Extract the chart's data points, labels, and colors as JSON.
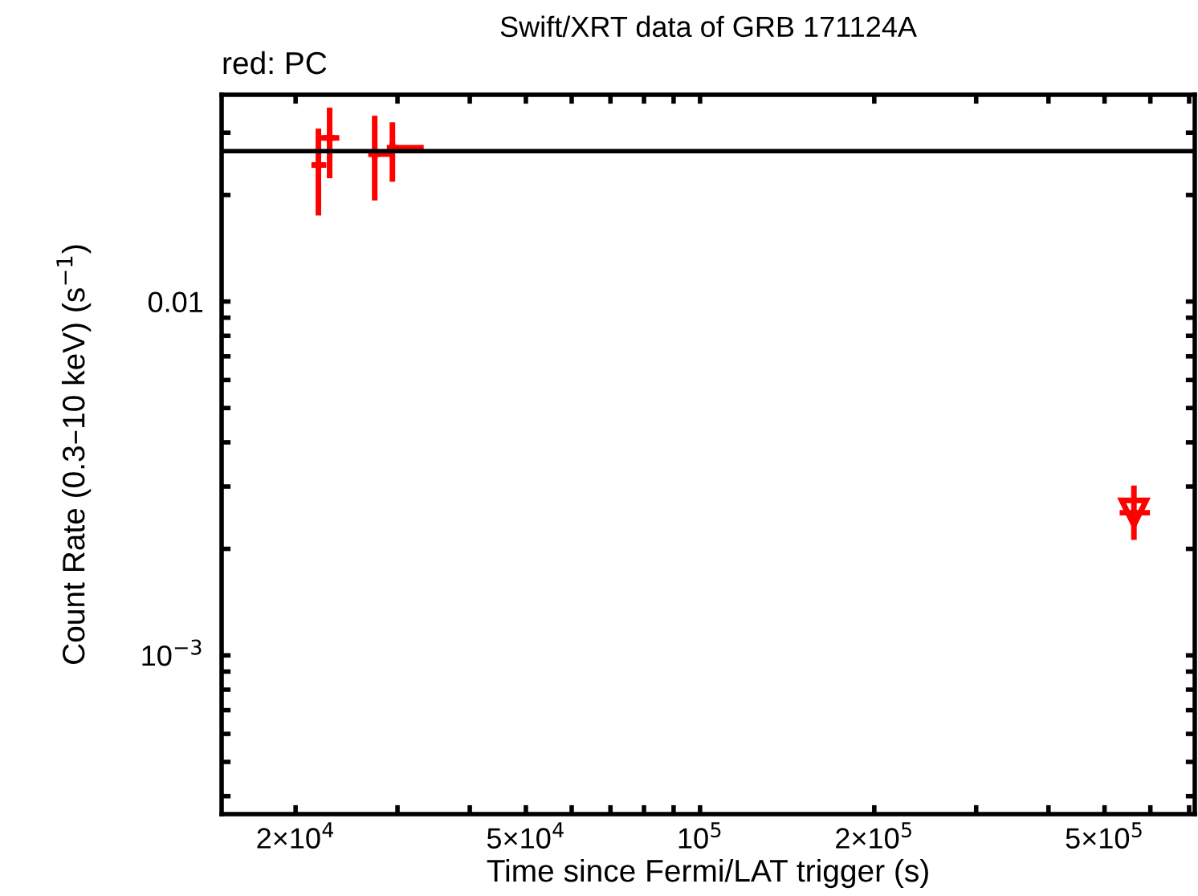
{
  "chart_data": {
    "type": "scatter",
    "title": "Swift/XRT data of GRB 171124A",
    "xlabel": "Time since Fermi/LAT trigger (s)",
    "ylabel": "Count Rate (0.3–10 keV) (s$^{−1}$)",
    "annotations": [
      "red: PC"
    ],
    "log": "xy",
    "grid": false,
    "legend": false,
    "xlim": [
      14900,
      716000
    ],
    "ylim": [
      0.000356,
      0.0384
    ],
    "xticks": [
      {
        "value": 20000,
        "label": "2×10$^{4}$"
      },
      {
        "value": 30000,
        "label": null
      },
      {
        "value": 40000,
        "label": null
      },
      {
        "value": 50000,
        "label": "5×10$^{4}$"
      },
      {
        "value": 60000,
        "label": null
      },
      {
        "value": 70000,
        "label": null
      },
      {
        "value": 80000,
        "label": null
      },
      {
        "value": 90000,
        "label": null
      },
      {
        "value": 100000,
        "label": "10$^{5}$"
      },
      {
        "value": 200000,
        "label": "2×10$^{5}$"
      },
      {
        "value": 300000,
        "label": null
      },
      {
        "value": 400000,
        "label": null
      },
      {
        "value": 500000,
        "label": "5×10$^{5}$"
      },
      {
        "value": 600000,
        "label": null
      },
      {
        "value": 700000,
        "label": null
      }
    ],
    "yticks": [
      {
        "value": 0.0004,
        "label": null
      },
      {
        "value": 0.0005,
        "label": null
      },
      {
        "value": 0.0006,
        "label": null
      },
      {
        "value": 0.0007,
        "label": null
      },
      {
        "value": 0.0008,
        "label": null
      },
      {
        "value": 0.0009,
        "label": null
      },
      {
        "value": 0.001,
        "label": "10$^{−3}$"
      },
      {
        "value": 0.002,
        "label": null
      },
      {
        "value": 0.003,
        "label": null
      },
      {
        "value": 0.004,
        "label": null
      },
      {
        "value": 0.005,
        "label": null
      },
      {
        "value": 0.006,
        "label": null
      },
      {
        "value": 0.007,
        "label": null
      },
      {
        "value": 0.008,
        "label": null
      },
      {
        "value": 0.009,
        "label": null
      },
      {
        "value": 0.01,
        "label": "0.01"
      },
      {
        "value": 0.02,
        "label": null
      },
      {
        "value": 0.03,
        "label": null
      }
    ],
    "series": [
      {
        "type": "scatter",
        "color": "#ff0000",
        "marker": "cross",
        "x": [
          21900,
          22900,
          27400,
          29400
        ],
        "values": [
          0.0243,
          0.029,
          0.0261,
          0.0272
        ],
        "errors": [
          [
            0.0175,
            0.0308
          ],
          [
            0.0223,
            0.0353
          ],
          [
            0.0193,
            0.0335
          ],
          [
            0.0218,
            0.0321
          ]
        ],
        "xerrors": [
          [
            21300,
            22600
          ],
          [
            22000,
            23800
          ],
          [
            26700,
            29200
          ],
          [
            29300,
            33300
          ]
        ]
      },
      {
        "type": "scatter",
        "color": "#ff0000",
        "marker": "triangle",
        "x": [
          562000
        ],
        "values": [
          0.00253
        ],
        "errors": [
          [
            0.00212,
            0.00302
          ]
        ],
        "xerrors": [
          [
            531000,
            599000
          ]
        ]
      },
      {
        "type": "line",
        "color": "#000000",
        "marker": "none",
        "line_style": "solid",
        "x": [
          14900,
          716000
        ],
        "values": [
          0.0266,
          0.0266
        ]
      }
    ]
  }
}
